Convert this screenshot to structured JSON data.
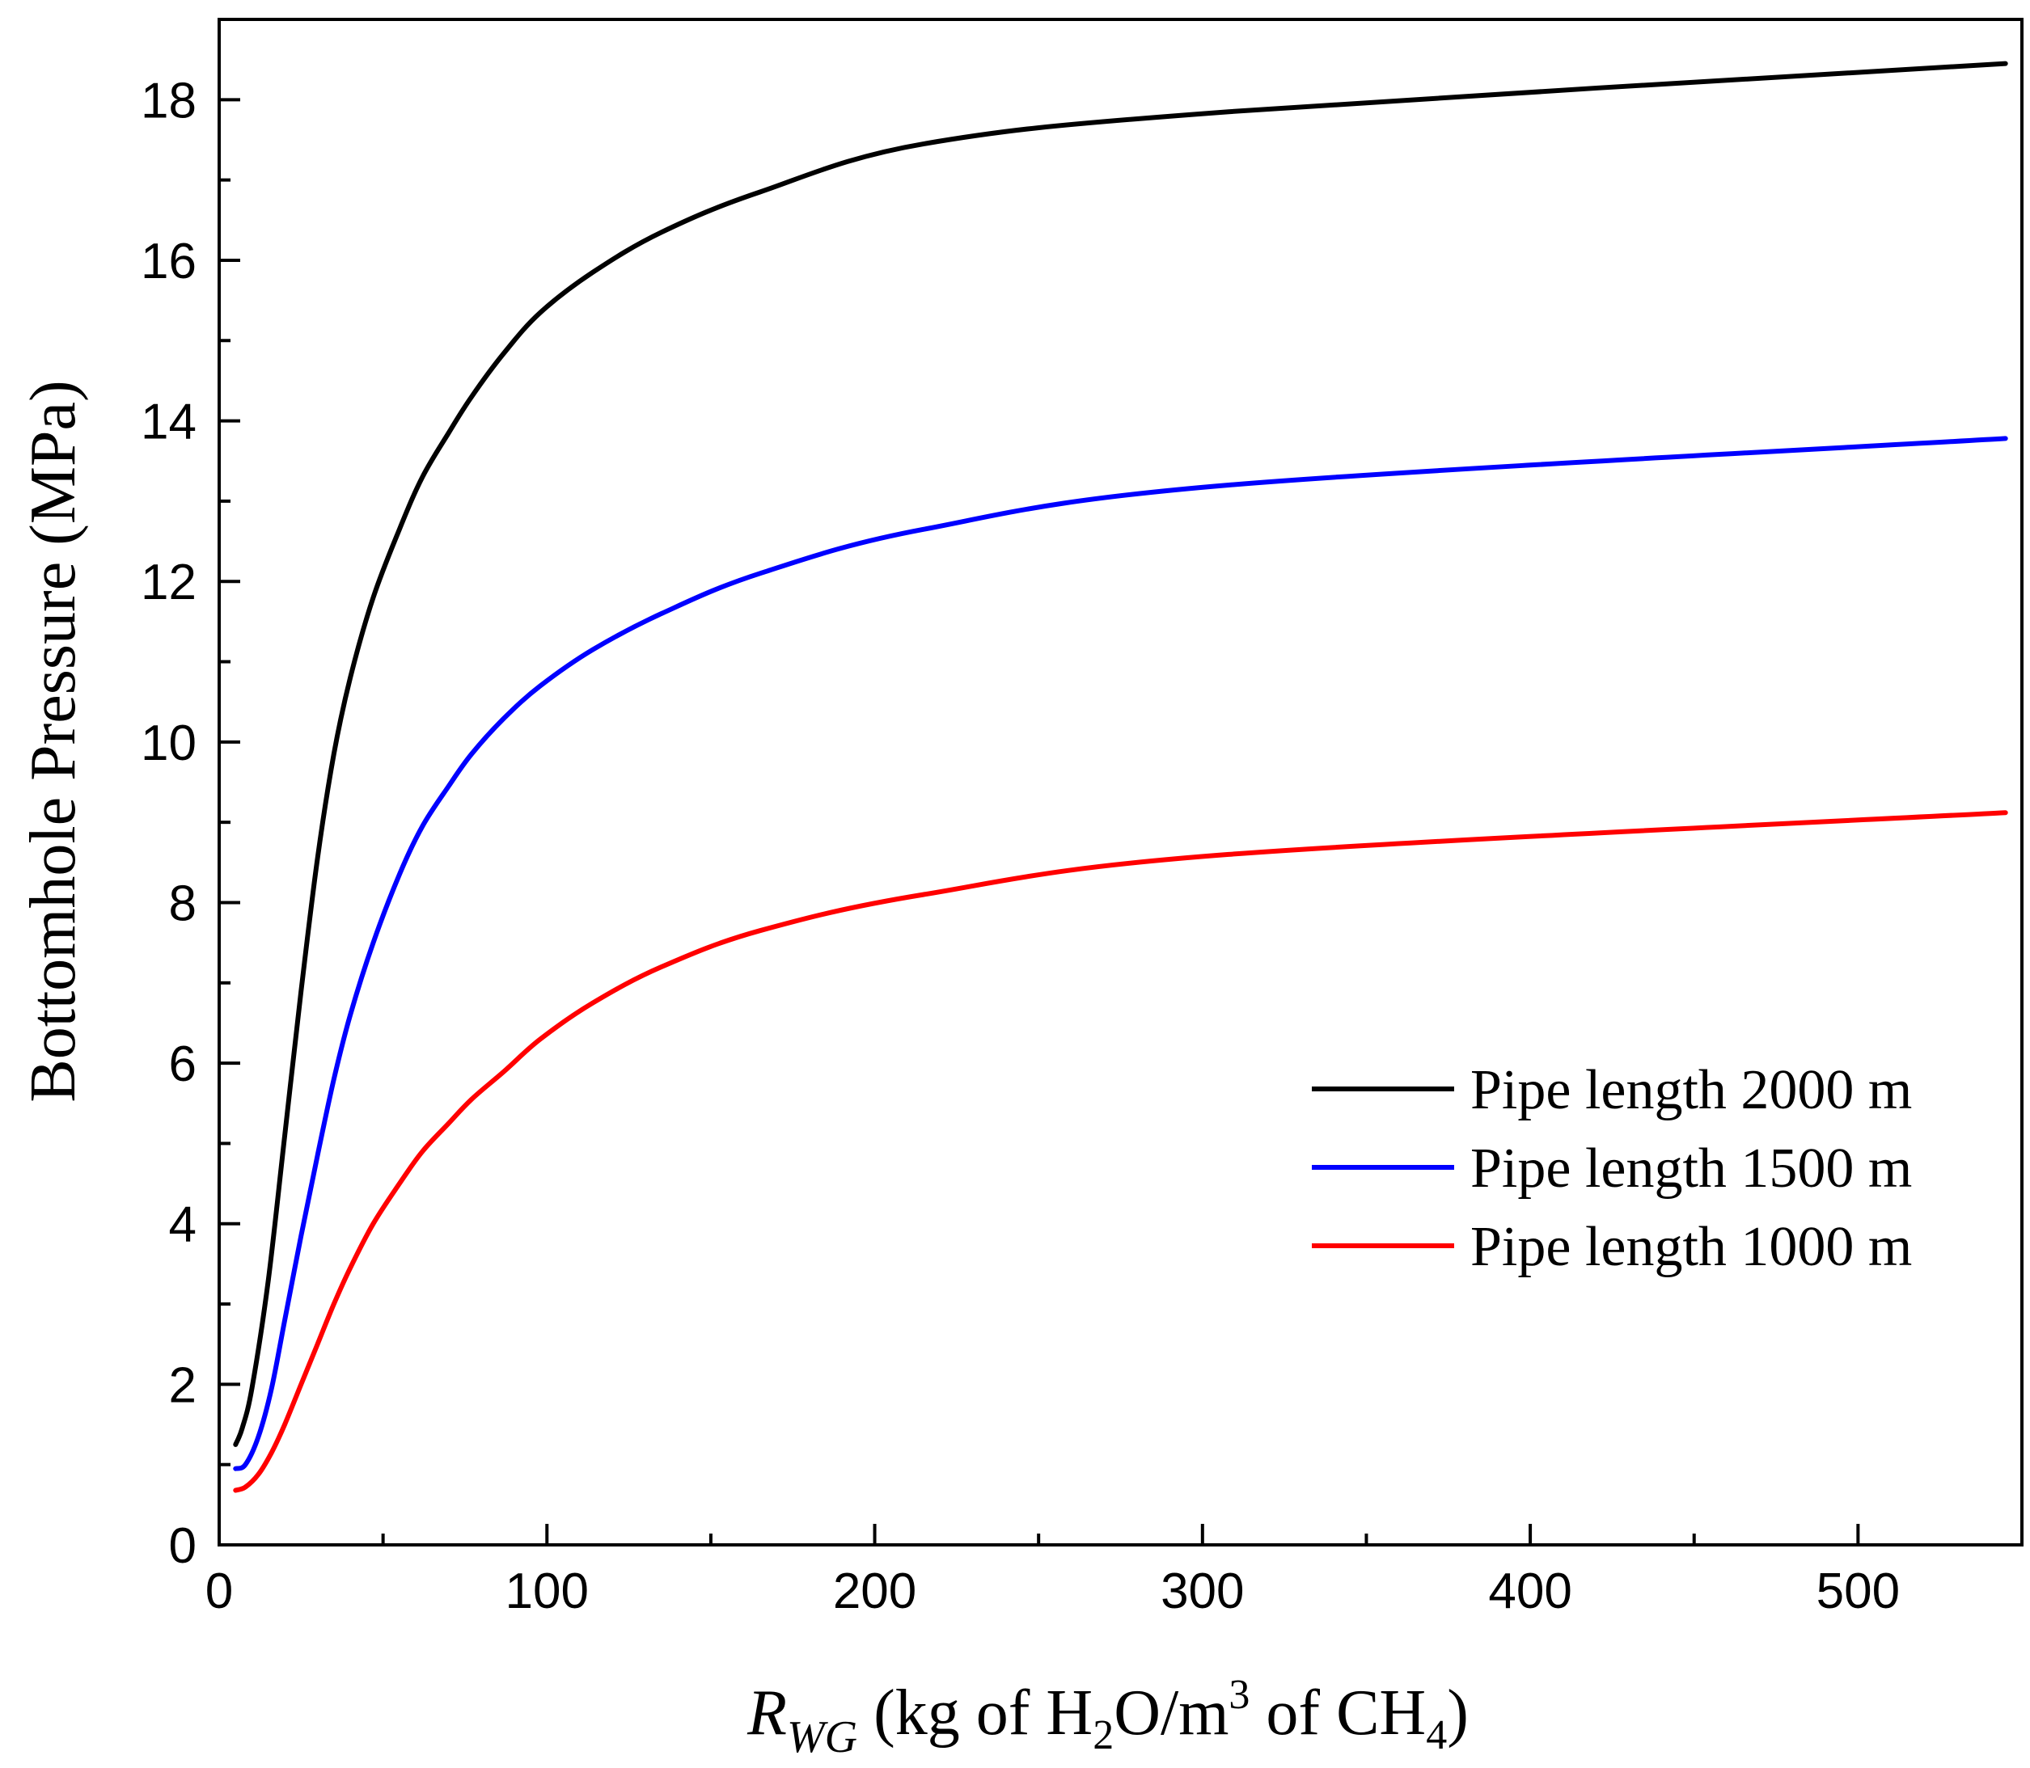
{
  "chart_data": {
    "type": "line",
    "title": "",
    "xlabel": {
      "symbol": "R",
      "subscript": "WG",
      "text_open": " (kg of H",
      "sub_2": "2",
      "text_mid": "O/m",
      "sup_3": "3",
      "text_of": " of CH",
      "sub_4": "4",
      "text_close": ")"
    },
    "ylabel": "Bottomhole Pressure (MPa)",
    "xlim": [
      0,
      550
    ],
    "ylim": [
      0,
      19
    ],
    "x_major_ticks": [
      0,
      100,
      200,
      300,
      400,
      500
    ],
    "x_minor_ticks": [
      50,
      150,
      250,
      350,
      450
    ],
    "y_major_ticks": [
      0,
      2,
      4,
      6,
      8,
      10,
      12,
      14,
      16,
      18
    ],
    "y_minor_ticks": [
      1,
      3,
      5,
      7,
      9,
      11,
      13,
      15,
      17
    ],
    "grid": false,
    "legend_position": "bottom-right",
    "series": [
      {
        "name": "Pipe length 2000 m",
        "color": "#000000",
        "x": [
          5,
          7,
          10,
          15,
          20,
          25,
          30,
          35,
          40,
          47,
          55,
          62,
          70,
          77,
          87,
          98,
          114,
          135,
          165,
          215,
          308,
          545
        ],
        "y": [
          1.25,
          1.45,
          1.95,
          3.3,
          5.1,
          6.9,
          8.55,
          9.85,
          10.8,
          11.8,
          12.65,
          13.3,
          13.85,
          14.3,
          14.85,
          15.35,
          15.85,
          16.35,
          16.85,
          17.45,
          17.85,
          18.45
        ]
      },
      {
        "name": "Pipe length 1500 m",
        "color": "#0000ff",
        "x": [
          5,
          8,
          12,
          16,
          20,
          25,
          30,
          35,
          40,
          47,
          55,
          62,
          70,
          77,
          87,
          98,
          114,
          135,
          165,
          215,
          308,
          545
        ],
        "y": [
          0.95,
          1.0,
          1.35,
          1.95,
          2.8,
          3.85,
          4.85,
          5.8,
          6.6,
          7.5,
          8.35,
          8.95,
          9.45,
          9.85,
          10.3,
          10.7,
          11.15,
          11.6,
          12.1,
          12.65,
          13.2,
          13.78
        ]
      },
      {
        "name": "Pipe length 1000 m",
        "color": "#ff0000",
        "x": [
          5,
          8,
          12,
          16,
          20,
          25,
          30,
          35,
          40,
          47,
          55,
          62,
          70,
          77,
          87,
          98,
          114,
          135,
          165,
          215,
          308,
          545
        ],
        "y": [
          0.68,
          0.72,
          0.88,
          1.15,
          1.5,
          2.0,
          2.5,
          3.0,
          3.45,
          4.0,
          4.5,
          4.9,
          5.25,
          5.55,
          5.9,
          6.3,
          6.75,
          7.2,
          7.65,
          8.1,
          8.6,
          9.12
        ]
      }
    ]
  }
}
